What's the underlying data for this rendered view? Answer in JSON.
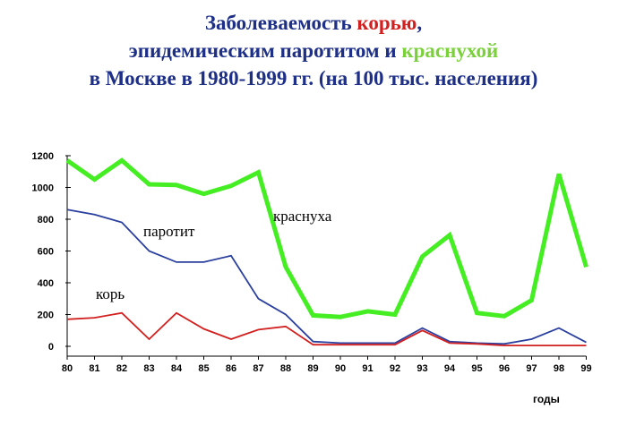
{
  "chart_data": {
    "type": "line",
    "title": {
      "line1_a": "Заболеваемость ",
      "line1_b": "корью",
      "line1_c": ",",
      "line2_a": "эпидемическим паротитом и ",
      "line2_b": "краснухой",
      "line3": "в Москве  в 1980-1999 гг.  (на 100 тыс. населения)"
    },
    "xlabel": "годы",
    "ylabel": "",
    "categories": [
      "80",
      "81",
      "82",
      "83",
      "84",
      "85",
      "86",
      "87",
      "88",
      "89",
      "90",
      "91",
      "92",
      "93",
      "94",
      "95",
      "96",
      "97",
      "98",
      "99"
    ],
    "yticks": [
      "0",
      "200",
      "400",
      "600",
      "800",
      "1000",
      "1200"
    ],
    "ylim": [
      0,
      1200
    ],
    "grid": false,
    "legend": "none",
    "series": [
      {
        "name": "краснуха",
        "color": "#44ee22",
        "values": [
          1170,
          1050,
          1170,
          1020,
          1015,
          960,
          1010,
          1095,
          500,
          195,
          185,
          220,
          200,
          565,
          700,
          210,
          190,
          290,
          1085,
          500
        ]
      },
      {
        "name": "паротит",
        "color": "#2a3f9e",
        "values": [
          860,
          830,
          780,
          600,
          530,
          530,
          570,
          300,
          200,
          30,
          20,
          20,
          20,
          115,
          30,
          20,
          15,
          45,
          115,
          25
        ]
      },
      {
        "name": "корь",
        "color": "#d21f1f",
        "values": [
          170,
          180,
          210,
          45,
          210,
          110,
          45,
          105,
          125,
          10,
          10,
          10,
          10,
          100,
          20,
          15,
          5,
          5,
          5,
          5
        ]
      }
    ]
  }
}
